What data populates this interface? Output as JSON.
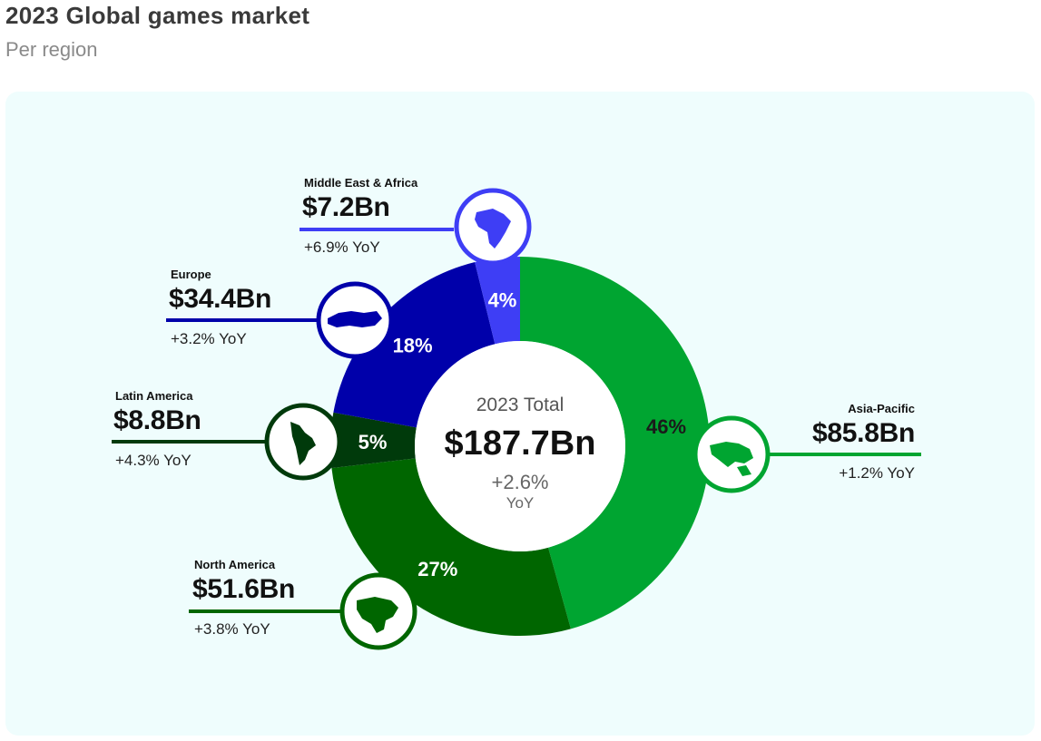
{
  "header": {
    "title": "2023 Global games market",
    "subtitle": "Per region"
  },
  "chart_data": {
    "type": "pie",
    "title": "2023 Global games market",
    "subtitle": "Per region",
    "center": {
      "label": "2023 Total",
      "value": "$187.7Bn",
      "yoy": "+2.6%",
      "yoy_unit": "YoY"
    },
    "slices": [
      {
        "name": "Asia-Pacific",
        "value_label": "$85.8Bn",
        "value": 85.8,
        "percent": 46,
        "percent_label": "46%",
        "yoy": "+1.2% YoY",
        "color": "#00a531",
        "icon": "asia-pacific-map-icon"
      },
      {
        "name": "North America",
        "value_label": "$51.6Bn",
        "value": 51.6,
        "percent": 27,
        "percent_label": "27%",
        "yoy": "+3.8% YoY",
        "color": "#006600",
        "icon": "north-america-map-icon"
      },
      {
        "name": "Latin America",
        "value_label": "$8.8Bn",
        "value": 8.8,
        "percent": 5,
        "percent_label": "5%",
        "yoy": "+4.3% YoY",
        "color": "#003a0b",
        "icon": "south-america-map-icon"
      },
      {
        "name": "Europe",
        "value_label": "$34.4Bn",
        "value": 34.4,
        "percent": 18,
        "percent_label": "18%",
        "yoy": "+3.2% YoY",
        "color": "#0000aa",
        "icon": "europe-map-icon"
      },
      {
        "name": "Middle East & Africa",
        "value_label": "$7.2Bn",
        "value": 7.2,
        "percent": 4,
        "percent_label": "4%",
        "yoy": "+6.9% YoY",
        "color": "#3e3ef5",
        "icon": "africa-map-icon"
      }
    ]
  }
}
